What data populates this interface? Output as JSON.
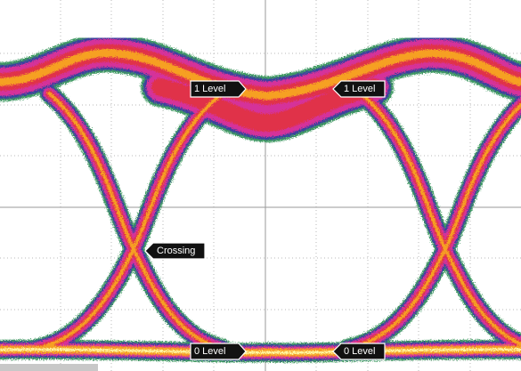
{
  "labels": {
    "one_level_left": "1 Level",
    "one_level_right": "1 Level",
    "crossing": "Crossing",
    "zero_level_left": "0 Level",
    "zero_level_right": "0 Level"
  }
}
